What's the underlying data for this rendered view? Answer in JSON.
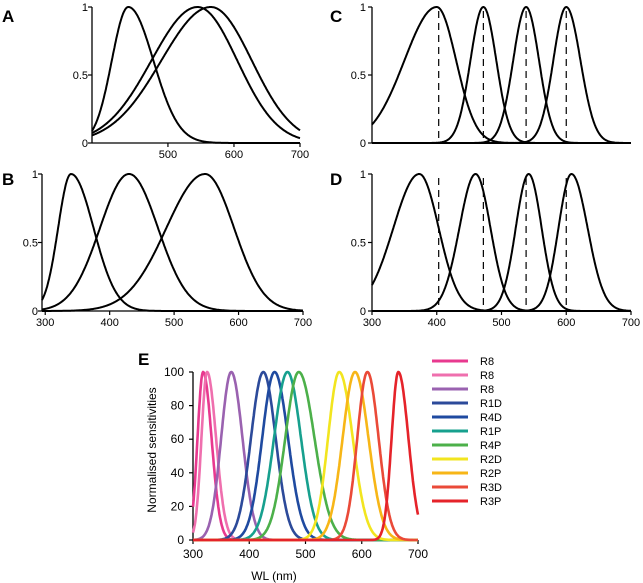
{
  "panels": [
    {
      "label": "A",
      "chart_data": {
        "type": "line",
        "xlim": [
          385,
          700
        ],
        "ylim": [
          0,
          1
        ],
        "xticks": [
          "500",
          "600",
          "700"
        ],
        "yticks": [
          "0",
          "0.5",
          "1"
        ],
        "grid": false,
        "series": [
          {
            "peak": 440,
            "sigma_left": 25,
            "sigma_right": 38
          },
          {
            "peak": 545,
            "sigma_left": 70,
            "sigma_right": 60
          },
          {
            "peak": 565,
            "sigma_left": 75,
            "sigma_right": 62
          }
        ]
      }
    },
    {
      "label": "B",
      "chart_data": {
        "type": "line",
        "xlim": [
          295,
          700
        ],
        "ylim": [
          0,
          1
        ],
        "xticks": [
          "300",
          "400",
          "500",
          "600",
          "700"
        ],
        "yticks": [
          "0",
          "0.5",
          "1"
        ],
        "grid": false,
        "series": [
          {
            "peak": 340,
            "sigma_left": 20,
            "sigma_right": 35
          },
          {
            "peak": 430,
            "sigma_left": 45,
            "sigma_right": 45
          },
          {
            "peak": 548,
            "sigma_left": 60,
            "sigma_right": 45
          }
        ]
      }
    },
    {
      "label": "C",
      "chart_data": {
        "type": "line",
        "xlim": [
          300,
          700
        ],
        "ylim": [
          0,
          1
        ],
        "xticks": [],
        "yticks": [
          "0",
          "0.5",
          "1"
        ],
        "grid": false,
        "series": [
          {
            "peak": 400,
            "sigma_left": 50,
            "sigma_right": 30
          },
          {
            "peak": 472,
            "sigma_left": 20,
            "sigma_right": 20
          },
          {
            "peak": 538,
            "sigma_left": 20,
            "sigma_right": 20
          },
          {
            "peak": 600,
            "sigma_left": 20,
            "sigma_right": 22
          }
        ],
        "dashed_lines_x": [
          403,
          472,
          538,
          600
        ]
      }
    },
    {
      "label": "D",
      "chart_data": {
        "type": "line",
        "xlim": [
          300,
          700
        ],
        "ylim": [
          0,
          1
        ],
        "xticks": [
          "300",
          "400",
          "500",
          "600",
          "700"
        ],
        "yticks": [
          "0",
          "0.5",
          "1"
        ],
        "grid": false,
        "series": [
          {
            "peak": 373,
            "sigma_left": 40,
            "sigma_right": 30
          },
          {
            "peak": 460,
            "sigma_left": 25,
            "sigma_right": 23
          },
          {
            "peak": 542,
            "sigma_left": 20,
            "sigma_right": 20
          },
          {
            "peak": 608,
            "sigma_left": 20,
            "sigma_right": 25
          }
        ],
        "dashed_lines_x": [
          403,
          472,
          538,
          600
        ]
      }
    },
    {
      "label": "E",
      "chart_data": {
        "type": "line",
        "xlim": [
          300,
          700
        ],
        "ylim": [
          0,
          100
        ],
        "xticks": [
          "300",
          "400",
          "500",
          "600",
          "700"
        ],
        "yticks": [
          "0",
          "20",
          "40",
          "60",
          "80",
          "100"
        ],
        "xlabel": "WL (nm)",
        "ylabel": "Normalised sensitivities",
        "legend_position": "right",
        "grid": false,
        "series": [
          {
            "name": "R8",
            "color": "#e8398f",
            "peak": 318,
            "sigma_left": 10,
            "sigma_right": 15
          },
          {
            "name": "R8",
            "color": "#ef6fae",
            "peak": 325,
            "sigma_left": 10,
            "sigma_right": 16
          },
          {
            "name": "R8",
            "color": "#9a62b0",
            "peak": 368,
            "sigma_left": 18,
            "sigma_right": 20
          },
          {
            "name": "R1D",
            "color": "#2c4a9a",
            "peak": 425,
            "sigma_left": 22,
            "sigma_right": 22
          },
          {
            "name": "R4D",
            "color": "#1f4aa0",
            "peak": 445,
            "sigma_left": 22,
            "sigma_right": 24
          },
          {
            "name": "R1P",
            "color": "#17a08e",
            "peak": 468,
            "sigma_left": 24,
            "sigma_right": 24
          },
          {
            "name": "R4P",
            "color": "#4cb04a",
            "peak": 488,
            "sigma_left": 24,
            "sigma_right": 28
          },
          {
            "name": "R2D",
            "color": "#f2e51f",
            "peak": 560,
            "sigma_left": 20,
            "sigma_right": 24
          },
          {
            "name": "R2P",
            "color": "#f7b617",
            "peak": 588,
            "sigma_left": 22,
            "sigma_right": 24
          },
          {
            "name": "R3D",
            "color": "#ea4a38",
            "peak": 610,
            "sigma_left": 18,
            "sigma_right": 20
          },
          {
            "name": "R3P",
            "color": "#e5232a",
            "peak": 665,
            "sigma_left": 12,
            "sigma_right": 18
          }
        ]
      }
    }
  ]
}
